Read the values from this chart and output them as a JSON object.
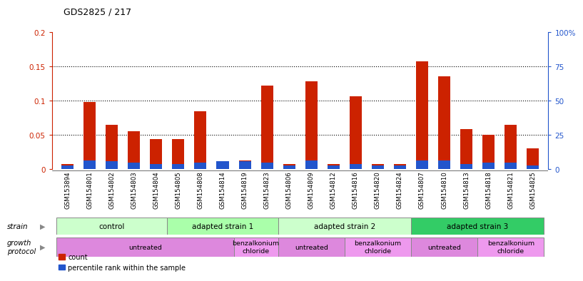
{
  "title": "GDS2825 / 217",
  "samples": [
    "GSM153894",
    "GSM154801",
    "GSM154802",
    "GSM154803",
    "GSM154804",
    "GSM154805",
    "GSM154808",
    "GSM154814",
    "GSM154819",
    "GSM154823",
    "GSM154806",
    "GSM154809",
    "GSM154812",
    "GSM154816",
    "GSM154820",
    "GSM154824",
    "GSM154807",
    "GSM154810",
    "GSM154813",
    "GSM154818",
    "GSM154821",
    "GSM154825"
  ],
  "count_values": [
    0.008,
    0.098,
    0.065,
    0.055,
    0.044,
    0.044,
    0.085,
    0.01,
    0.013,
    0.122,
    0.008,
    0.128,
    0.007,
    0.106,
    0.007,
    0.008,
    0.158,
    0.136,
    0.059,
    0.05,
    0.065,
    0.03
  ],
  "percentile_values": [
    0.005,
    0.013,
    0.012,
    0.01,
    0.008,
    0.008,
    0.01,
    0.012,
    0.012,
    0.01,
    0.005,
    0.013,
    0.005,
    0.008,
    0.005,
    0.005,
    0.013,
    0.013,
    0.008,
    0.01,
    0.01,
    0.005
  ],
  "bar_color": "#cc2200",
  "percentile_color": "#2255cc",
  "ylim_left": [
    0,
    0.2
  ],
  "ylim_right": [
    0,
    100
  ],
  "yticks_left": [
    0,
    0.05,
    0.1,
    0.15,
    0.2
  ],
  "yticks_right": [
    0,
    25,
    50,
    75,
    100
  ],
  "ytick_labels_left": [
    "0",
    "0.05",
    "0.1",
    "0.15",
    "0.2"
  ],
  "ytick_labels_right": [
    "0",
    "25",
    "50",
    "75",
    "100%"
  ],
  "strain_data": [
    {
      "label": "control",
      "start": 0,
      "end": 4,
      "color": "#ccffcc"
    },
    {
      "label": "adapted strain 1",
      "start": 5,
      "end": 9,
      "color": "#aaffaa"
    },
    {
      "label": "adapted strain 2",
      "start": 10,
      "end": 15,
      "color": "#ccffcc"
    },
    {
      "label": "adapted strain 3",
      "start": 16,
      "end": 21,
      "color": "#33cc66"
    }
  ],
  "proto_data": [
    {
      "label": "untreated",
      "start": 0,
      "end": 7,
      "color": "#dd88dd"
    },
    {
      "label": "benzalkonium\nchloride",
      "start": 8,
      "end": 9,
      "color": "#ee99ee"
    },
    {
      "label": "untreated",
      "start": 10,
      "end": 12,
      "color": "#dd88dd"
    },
    {
      "label": "benzalkonium\nchloride",
      "start": 13,
      "end": 15,
      "color": "#ee99ee"
    },
    {
      "label": "untreated",
      "start": 16,
      "end": 18,
      "color": "#dd88dd"
    },
    {
      "label": "benzalkonium\nchloride",
      "start": 19,
      "end": 21,
      "color": "#ee99ee"
    }
  ],
  "background_color": "#ffffff",
  "left_axis_color": "#cc2200",
  "right_axis_color": "#2255cc"
}
